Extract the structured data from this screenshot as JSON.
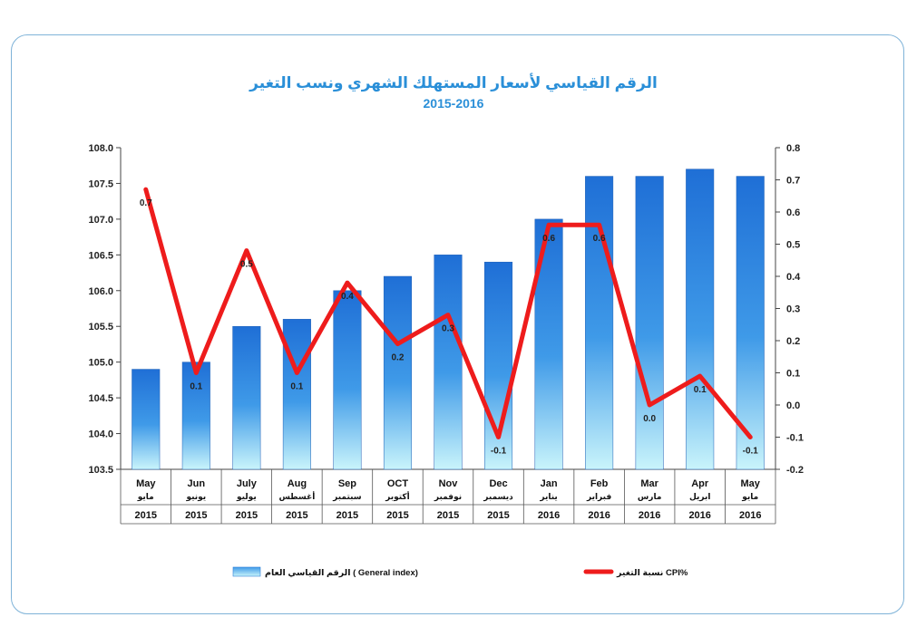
{
  "title_ar": "الرقم القياسي لأسعار المستهلك الشهري ونسب التغير",
  "title_years": "2015-2016",
  "colors": {
    "bar": "#2f7fd8",
    "line": "#ee1c1c",
    "frame": "#7fb3d8",
    "title": "#2a8fd8"
  },
  "chart_data": {
    "type": "bar",
    "title": "الرقم القياسي لأسعار المستهلك الشهري ونسب التغير",
    "subtitle": "2015-2016",
    "categories": [
      {
        "en": "May",
        "ar": "مايو",
        "year": "2015"
      },
      {
        "en": "Jun",
        "ar": "يونيو",
        "year": "2015"
      },
      {
        "en": "July",
        "ar": "يوليو",
        "year": "2015"
      },
      {
        "en": "Aug",
        "ar": "أغسطس",
        "year": "2015"
      },
      {
        "en": "Sep",
        "ar": "سبتمبر",
        "year": "2015"
      },
      {
        "en": "OCT",
        "ar": "أكتوبر",
        "year": "2015"
      },
      {
        "en": "Nov",
        "ar": "نوفمبر",
        "year": "2015"
      },
      {
        "en": "Dec",
        "ar": "ديسمبر",
        "year": "2015"
      },
      {
        "en": "Jan",
        "ar": "يناير",
        "year": "2016"
      },
      {
        "en": "Feb",
        "ar": "فبراير",
        "year": "2016"
      },
      {
        "en": "Mar",
        "ar": "مارس",
        "year": "2016"
      },
      {
        "en": "Apr",
        "ar": "ابريل",
        "year": "2016"
      },
      {
        "en": "May",
        "ar": "مايو",
        "year": "2016"
      }
    ],
    "series": [
      {
        "name": "الرقم القياسي العام ( General index)",
        "type": "bar",
        "axis": "left",
        "values": [
          104.9,
          105.0,
          105.5,
          105.6,
          106.0,
          106.2,
          106.5,
          106.4,
          107.0,
          107.6,
          107.6,
          107.7,
          107.6
        ]
      },
      {
        "name": "نسبة التغير CPI%",
        "type": "line",
        "axis": "right",
        "values": [
          0.67,
          0.1,
          0.48,
          0.1,
          0.38,
          0.19,
          0.28,
          -0.1,
          0.56,
          0.56,
          0.0,
          0.09,
          -0.1
        ],
        "labels": [
          "0.7",
          "0.1",
          "0.5",
          "0.1",
          "0.4",
          "0.2",
          "0.3",
          "-0.1",
          "0.6",
          "0.6",
          "0.0",
          "0.1",
          "-0.1"
        ]
      }
    ],
    "y_left": {
      "min": 103.5,
      "max": 108.0,
      "ticks": [
        "103.5",
        "104.0",
        "104.5",
        "105.0",
        "105.5",
        "106.0",
        "106.5",
        "107.0",
        "107.5",
        "108.0"
      ]
    },
    "y_right": {
      "min": -0.2,
      "max": 0.8,
      "ticks": [
        "-0.2",
        "-0.1",
        "0.0",
        "0.1",
        "0.2",
        "0.3",
        "0.4",
        "0.5",
        "0.6",
        "0.7",
        "0.8"
      ]
    },
    "legend_position": "bottom",
    "grid": false
  },
  "legend": {
    "bar_label": "الرقم القياسي العام ( General index)",
    "line_label": "نسبة التغير CPI%"
  }
}
